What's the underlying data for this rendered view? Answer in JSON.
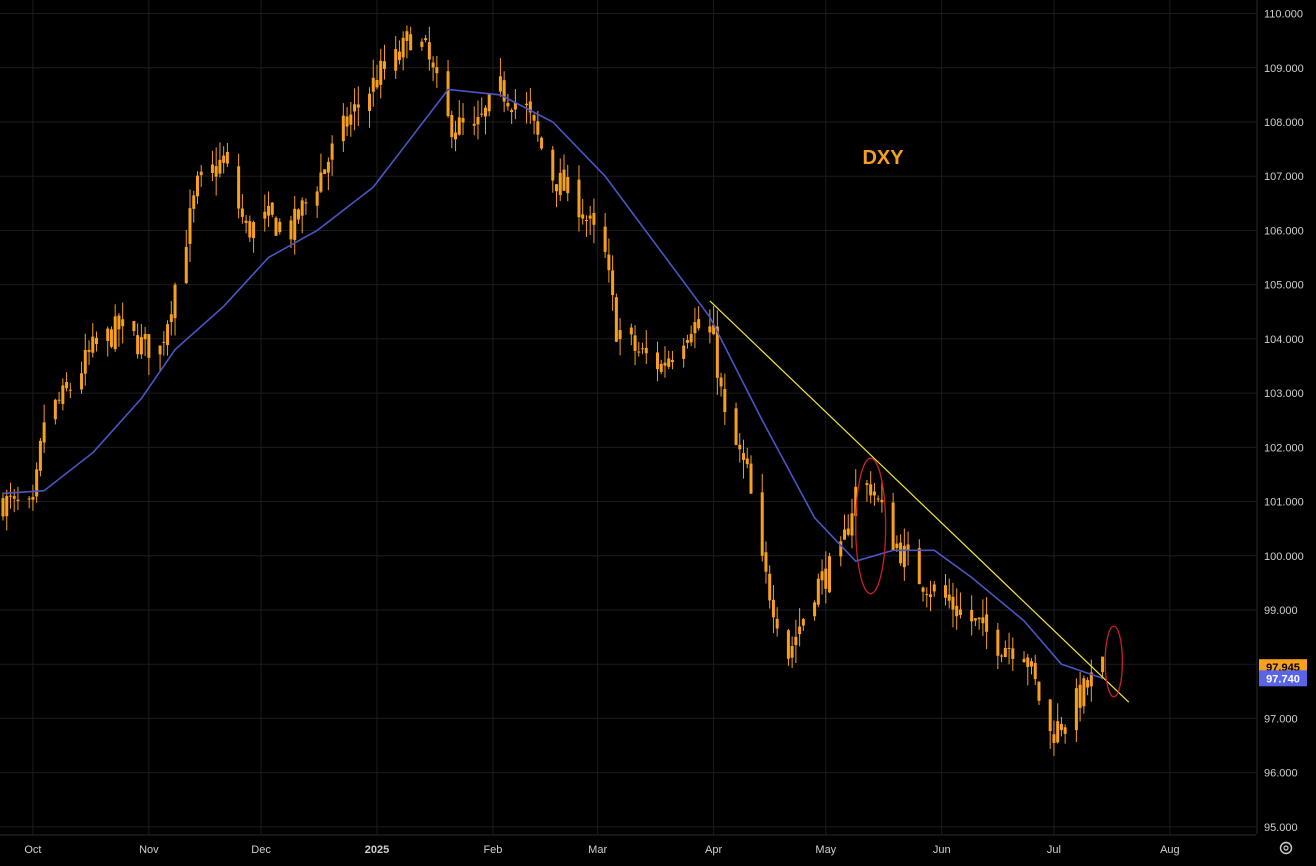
{
  "chart_data": {
    "type": "candlestick",
    "title": "DXY",
    "y_ticks": [
      "95.000",
      "96.000",
      "97.000",
      "98.000",
      "99.000",
      "100.000",
      "101.000",
      "102.000",
      "103.000",
      "104.000",
      "105.000",
      "106.000",
      "107.000",
      "108.000",
      "109.000",
      "110.000"
    ],
    "ylim": [
      94.85,
      110.25
    ],
    "x_ticks": [
      "Oct",
      "Nov",
      "Dec",
      "2025",
      "Feb",
      "Mar",
      "Apr",
      "May",
      "Jun",
      "Jul",
      "Aug"
    ],
    "grid": true,
    "price_label": "97.945",
    "ma_label": "97.740",
    "colors": {
      "candle": "#f7a01d",
      "ma_line": "#4a56c6",
      "trendline": "#f5e63a",
      "annotation": "#c8202a",
      "grid": "#1c1c1c",
      "axis_text": "#cfcfcf",
      "price_label_bg": "#f7a01d",
      "ma_label_bg": "#5a64e8"
    },
    "series": [
      {
        "name": "",
        "kind": "price",
        "points": [
          [
            "2024-09-23",
            101.0
          ],
          [
            "2024-10-01",
            100.8
          ],
          [
            "2024-10-04",
            102.5
          ],
          [
            "2024-10-10",
            103.0
          ],
          [
            "2024-10-17",
            103.8
          ],
          [
            "2024-10-24",
            104.2
          ],
          [
            "2024-10-30",
            103.9
          ],
          [
            "2024-11-04",
            103.8
          ],
          [
            "2024-11-08",
            105.0
          ],
          [
            "2024-11-14",
            106.8
          ],
          [
            "2024-11-21",
            107.3
          ],
          [
            "2024-11-27",
            106.0
          ],
          [
            "2024-12-03",
            106.2
          ],
          [
            "2024-12-09",
            106.0
          ],
          [
            "2024-12-16",
            106.9
          ],
          [
            "2024-12-24",
            108.0
          ],
          [
            "2025-01-02",
            108.9
          ],
          [
            "2025-01-07",
            109.2
          ],
          [
            "2025-01-10",
            109.6
          ],
          [
            "2025-01-14",
            109.3
          ],
          [
            "2025-01-20",
            108.0
          ],
          [
            "2025-01-27",
            107.8
          ],
          [
            "2025-02-03",
            108.6
          ],
          [
            "2025-02-10",
            108.2
          ],
          [
            "2025-02-17",
            107.0
          ],
          [
            "2025-02-24",
            106.5
          ],
          [
            "2025-03-03",
            105.5
          ],
          [
            "2025-03-06",
            104.2
          ],
          [
            "2025-03-11",
            103.8
          ],
          [
            "2025-03-18",
            103.5
          ],
          [
            "2025-03-26",
            104.3
          ],
          [
            "2025-04-01",
            104.0
          ],
          [
            "2025-04-04",
            102.5
          ],
          [
            "2025-04-10",
            101.5
          ],
          [
            "2025-04-14",
            99.8
          ],
          [
            "2025-04-21",
            98.2
          ],
          [
            "2025-04-28",
            99.4
          ],
          [
            "2025-05-05",
            100.0
          ],
          [
            "2025-05-09",
            101.2
          ],
          [
            "2025-05-13",
            101.3
          ],
          [
            "2025-05-19",
            100.3
          ],
          [
            "2025-05-26",
            99.6
          ],
          [
            "2025-06-02",
            99.2
          ],
          [
            "2025-06-09",
            98.8
          ],
          [
            "2025-06-16",
            98.4
          ],
          [
            "2025-06-23",
            98.3
          ],
          [
            "2025-06-30",
            96.7
          ],
          [
            "2025-07-04",
            97.0
          ],
          [
            "2025-07-10",
            97.6
          ],
          [
            "2025-07-14",
            97.945
          ]
        ]
      },
      {
        "name": "",
        "kind": "moving_average",
        "points": [
          [
            "2024-09-23",
            101.15
          ],
          [
            "2024-10-04",
            101.2
          ],
          [
            "2024-10-17",
            101.9
          ],
          [
            "2024-10-30",
            102.9
          ],
          [
            "2024-11-08",
            103.8
          ],
          [
            "2024-11-21",
            104.6
          ],
          [
            "2024-12-03",
            105.5
          ],
          [
            "2024-12-16",
            106.0
          ],
          [
            "2024-12-31",
            106.8
          ],
          [
            "2025-01-10",
            107.7
          ],
          [
            "2025-01-20",
            108.6
          ],
          [
            "2025-02-03",
            108.5
          ],
          [
            "2025-02-17",
            108.0
          ],
          [
            "2025-03-03",
            107.0
          ],
          [
            "2025-03-17",
            105.7
          ],
          [
            "2025-03-31",
            104.4
          ],
          [
            "2025-04-14",
            102.5
          ],
          [
            "2025-04-28",
            100.7
          ],
          [
            "2025-05-09",
            99.9
          ],
          [
            "2025-05-19",
            100.1
          ],
          [
            "2025-05-30",
            100.1
          ],
          [
            "2025-06-09",
            99.6
          ],
          [
            "2025-06-23",
            98.8
          ],
          [
            "2025-07-03",
            98.0
          ],
          [
            "2025-07-14",
            97.74
          ]
        ]
      }
    ],
    "trendline": {
      "start": [
        "2025-03-31",
        104.7
      ],
      "end": [
        "2025-07-21",
        97.3
      ]
    },
    "annotations": [
      {
        "kind": "ellipse",
        "center": [
          "2025-05-13",
          100.55
        ],
        "rx_days": 4,
        "ry_value": 1.25
      },
      {
        "kind": "ellipse",
        "center": [
          "2025-07-17",
          98.05
        ],
        "rx_days": 2.3,
        "ry_value": 0.65
      }
    ]
  },
  "settings_icon": "settings-gear-icon"
}
